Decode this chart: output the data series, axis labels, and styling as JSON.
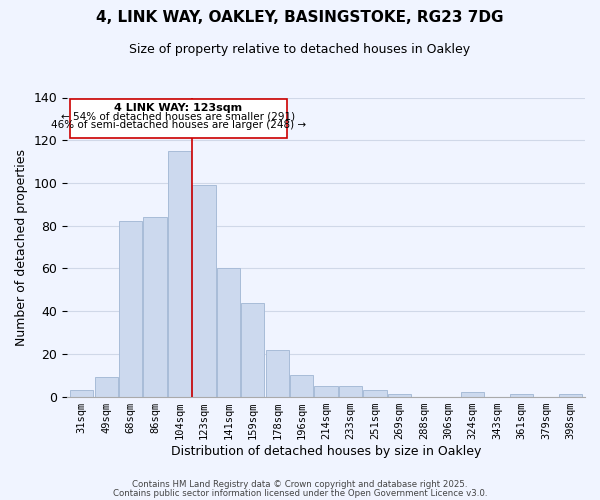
{
  "title": "4, LINK WAY, OAKLEY, BASINGSTOKE, RG23 7DG",
  "subtitle": "Size of property relative to detached houses in Oakley",
  "xlabel": "Distribution of detached houses by size in Oakley",
  "ylabel": "Number of detached properties",
  "bar_color": "#ccd9ee",
  "bar_edge_color": "#a8bcd8",
  "categories": [
    "31sqm",
    "49sqm",
    "68sqm",
    "86sqm",
    "104sqm",
    "123sqm",
    "141sqm",
    "159sqm",
    "178sqm",
    "196sqm",
    "214sqm",
    "233sqm",
    "251sqm",
    "269sqm",
    "288sqm",
    "306sqm",
    "324sqm",
    "343sqm",
    "361sqm",
    "379sqm",
    "398sqm"
  ],
  "values": [
    3,
    9,
    82,
    84,
    115,
    99,
    60,
    44,
    22,
    10,
    5,
    5,
    3,
    1,
    0,
    0,
    2,
    0,
    1,
    0,
    1
  ],
  "ylim": [
    0,
    140
  ],
  "yticks": [
    0,
    20,
    40,
    60,
    80,
    100,
    120,
    140
  ],
  "marker_index": 5,
  "marker_label": "4 LINK WAY: 123sqm",
  "marker_color": "#cc0000",
  "annotation_line1": "← 54% of detached houses are smaller (291)",
  "annotation_line2": "46% of semi-detached houses are larger (248) →",
  "footer1": "Contains HM Land Registry data © Crown copyright and database right 2025.",
  "footer2": "Contains public sector information licensed under the Open Government Licence v3.0.",
  "background_color": "#f0f4ff",
  "grid_color": "#d0d8e8"
}
